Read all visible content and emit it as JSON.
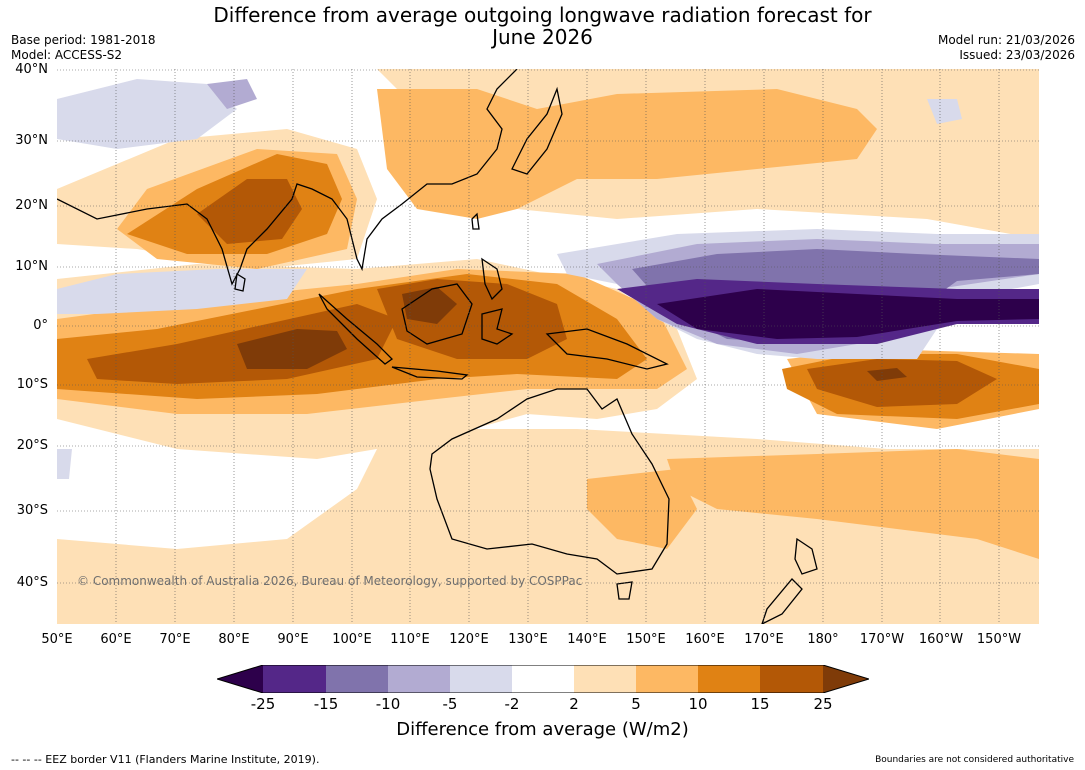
{
  "header": {
    "title_line1": "Difference from average outgoing longwave radiation forecast for",
    "title_line2": "June 2026",
    "base_period": "Base period: 1981-2018",
    "model": "Model: ACCESS-S2",
    "model_run": "Model run: 21/03/2026",
    "issued": "Issued: 23/03/2026"
  },
  "map": {
    "lat_labels": [
      "40°N",
      "30°N",
      "20°N",
      "10°N",
      "0°",
      "10°S",
      "20°S",
      "30°S",
      "40°S"
    ],
    "lon_labels": [
      "50°E",
      "60°E",
      "70°E",
      "80°E",
      "90°E",
      "100°E",
      "110°E",
      "120°E",
      "130°E",
      "140°E",
      "150°E",
      "160°E",
      "170°E",
      "180°",
      "170°W",
      "160°W",
      "150°W"
    ],
    "copyright": "© Commonwealth of Australia 2026, Bureau of Meteorology, supported by COSPPac"
  },
  "colorbar": {
    "colors": [
      "#2d004b",
      "#542788",
      "#8073ac",
      "#b2abd2",
      "#d8daeb",
      "#ffffff",
      "#fee0b6",
      "#fdb863",
      "#e08214",
      "#b35806",
      "#7f3b08"
    ],
    "tick_labels": [
      "-25",
      "-15",
      "-10",
      "-5",
      "-2",
      "2",
      "5",
      "10",
      "15",
      "25"
    ],
    "label": "Difference from average (W/m2)"
  },
  "footer": {
    "eez_note": "--  --  -- EEZ border V11 (Flanders Marine Institute, 2019).",
    "disclaimer": "Boundaries are not considered authoritative"
  }
}
